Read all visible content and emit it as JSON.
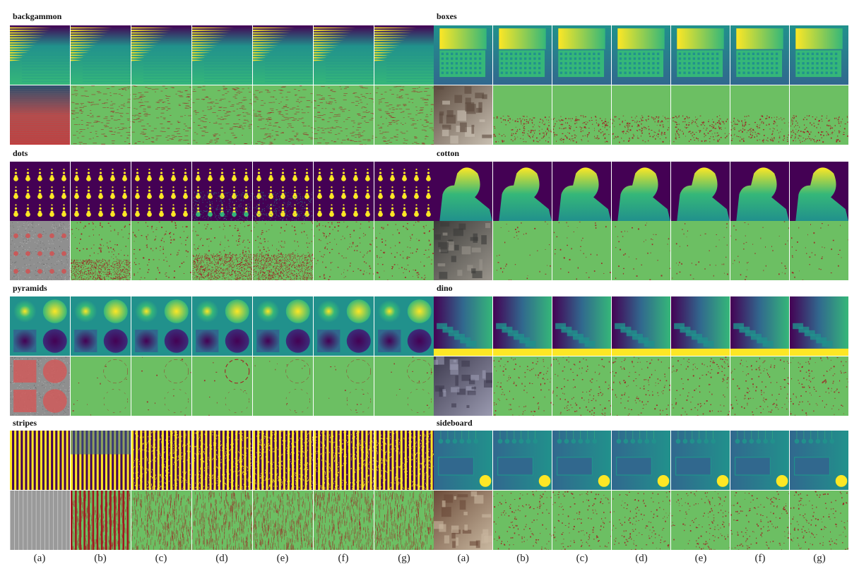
{
  "panels": {
    "left": [
      {
        "name": "backgammon",
        "scene": "backgammon"
      },
      {
        "name": "dots",
        "scene": "dots"
      },
      {
        "name": "pyramids",
        "scene": "pyramids"
      },
      {
        "name": "stripes",
        "scene": "stripes"
      }
    ],
    "right": [
      {
        "name": "boxes",
        "scene": "boxes"
      },
      {
        "name": "cotton",
        "scene": "cotton"
      },
      {
        "name": "dino",
        "scene": "dino"
      },
      {
        "name": "sideboard",
        "scene": "sideboard"
      }
    ]
  },
  "captions": [
    "(a)",
    "(b)",
    "(c)",
    "(d)",
    "(e)",
    "(f)",
    "(g)"
  ],
  "colors": {
    "error_background": "#6cbf63",
    "error_mark": "#a3161f",
    "viridis_purple": "#440154",
    "viridis_blue": "#31688e",
    "viridis_teal": "#21918c",
    "viridis_green": "#35b779",
    "viridis_yellow": "#fde725",
    "input_gray": "#8f8f8f"
  }
}
